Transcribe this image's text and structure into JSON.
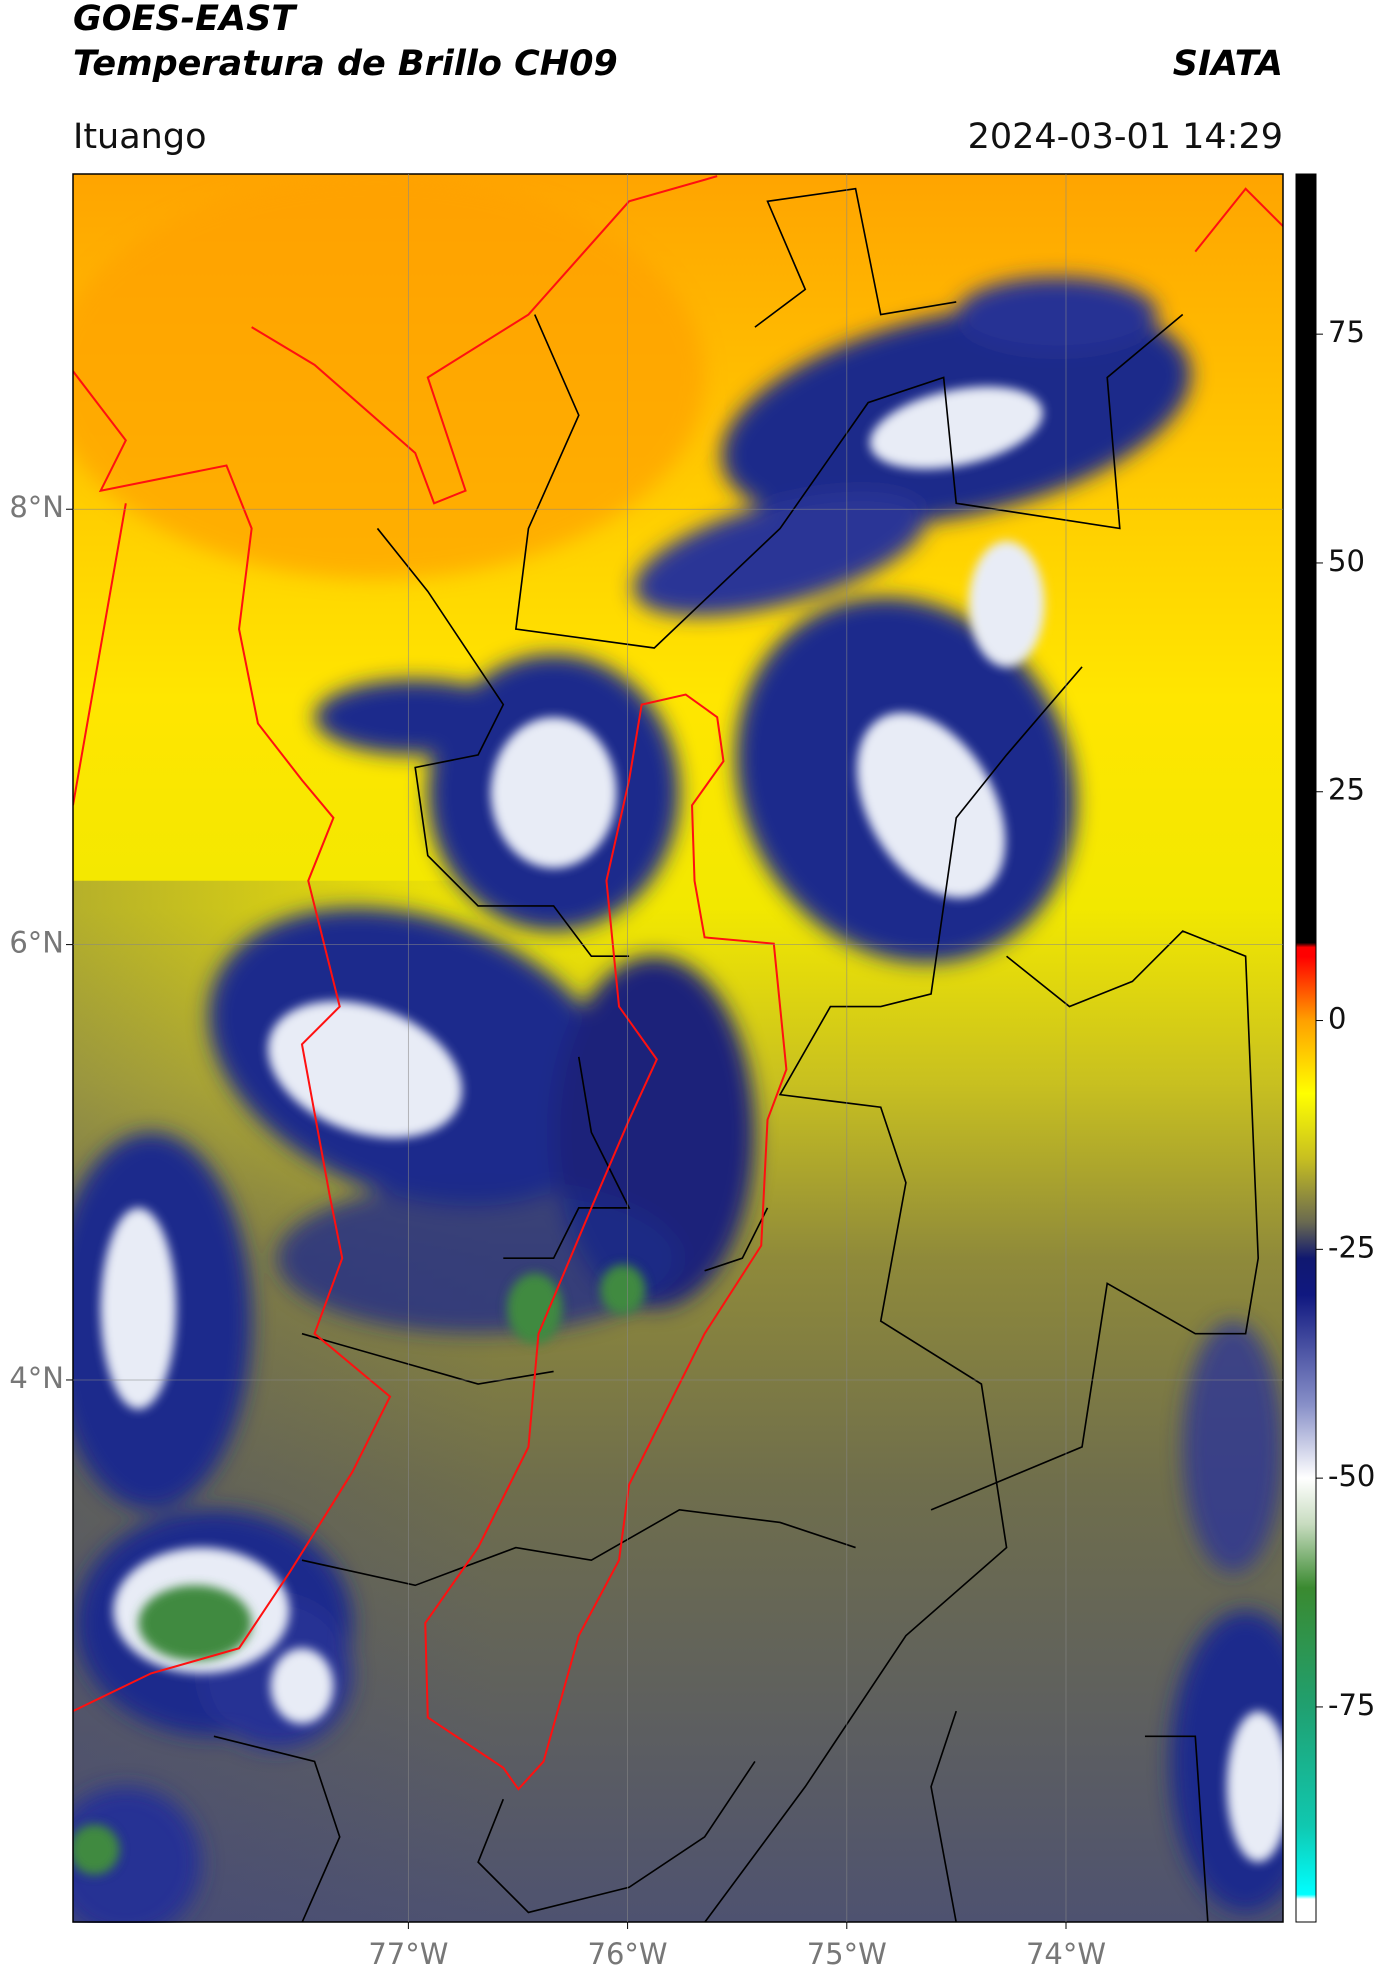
{
  "header": {
    "title_line1": "GOES-EAST",
    "title_line2": "Temperatura de Brillo CH09",
    "source": "SIATA",
    "region": "Ituango",
    "datetime": "2024-03-01 14:29"
  },
  "map": {
    "xlim": [
      -78.53,
      -73.01
    ],
    "ylim": [
      1.51,
      9.54
    ],
    "xticks": [
      {
        "value": -77,
        "label": "77°W"
      },
      {
        "value": -76,
        "label": "76°W"
      },
      {
        "value": -75,
        "label": "75°W"
      },
      {
        "value": -74,
        "label": "74°W"
      }
    ],
    "yticks": [
      {
        "value": 8,
        "label": "8°N"
      },
      {
        "value": 6,
        "label": "6°N"
      },
      {
        "value": 4,
        "label": "4°N"
      }
    ],
    "grid": true
  },
  "colorbar": {
    "lim": [
      -98.5,
      92.5
    ],
    "ticks": [
      75,
      50,
      25,
      0,
      -25,
      -50,
      -75
    ]
  }
}
